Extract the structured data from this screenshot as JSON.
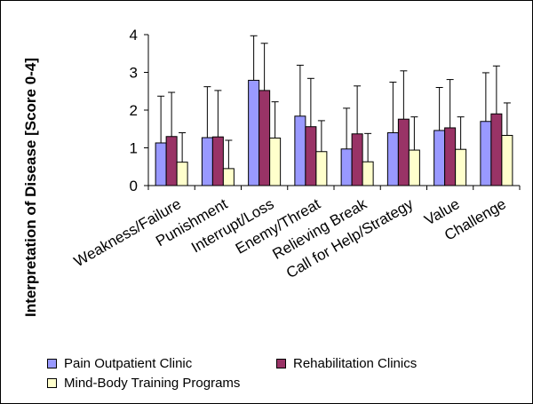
{
  "chart_data": {
    "type": "bar",
    "title": "",
    "xlabel": "",
    "ylabel": "Interpretation of Disease [Score 0-4]",
    "ylim": [
      0,
      4
    ],
    "yticks": [
      "0",
      "1",
      "2",
      "3",
      "4"
    ],
    "grid": false,
    "legend_position": "bottom",
    "categories": [
      "Weakness/Failure",
      "Punishment",
      "Interrupt/Loss",
      "Enemy/Threat",
      "Relieving Break",
      "Call for Help/Strategy",
      "Value",
      "Challenge"
    ],
    "series": [
      {
        "name": "Pain Outpatient Clinic",
        "color": "#9999ff",
        "values": [
          1.13,
          1.27,
          2.79,
          1.84,
          0.97,
          1.4,
          1.46,
          1.7
        ],
        "error": [
          1.24,
          1.35,
          1.18,
          1.35,
          1.08,
          1.34,
          1.14,
          1.29
        ]
      },
      {
        "name": "Rehabilitation Clinics",
        "color": "#993366",
        "values": [
          1.3,
          1.29,
          2.52,
          1.56,
          1.37,
          1.76,
          1.53,
          1.9
        ],
        "error": [
          1.17,
          1.23,
          1.25,
          1.28,
          1.27,
          1.28,
          1.28,
          1.27
        ]
      },
      {
        "name": "Mind-Body Training Programs",
        "color": "#ffffcc",
        "values": [
          0.62,
          0.45,
          1.26,
          0.9,
          0.63,
          0.94,
          0.96,
          1.33
        ],
        "error": [
          0.78,
          0.75,
          0.96,
          0.82,
          0.75,
          0.88,
          0.86,
          0.86
        ]
      }
    ]
  }
}
